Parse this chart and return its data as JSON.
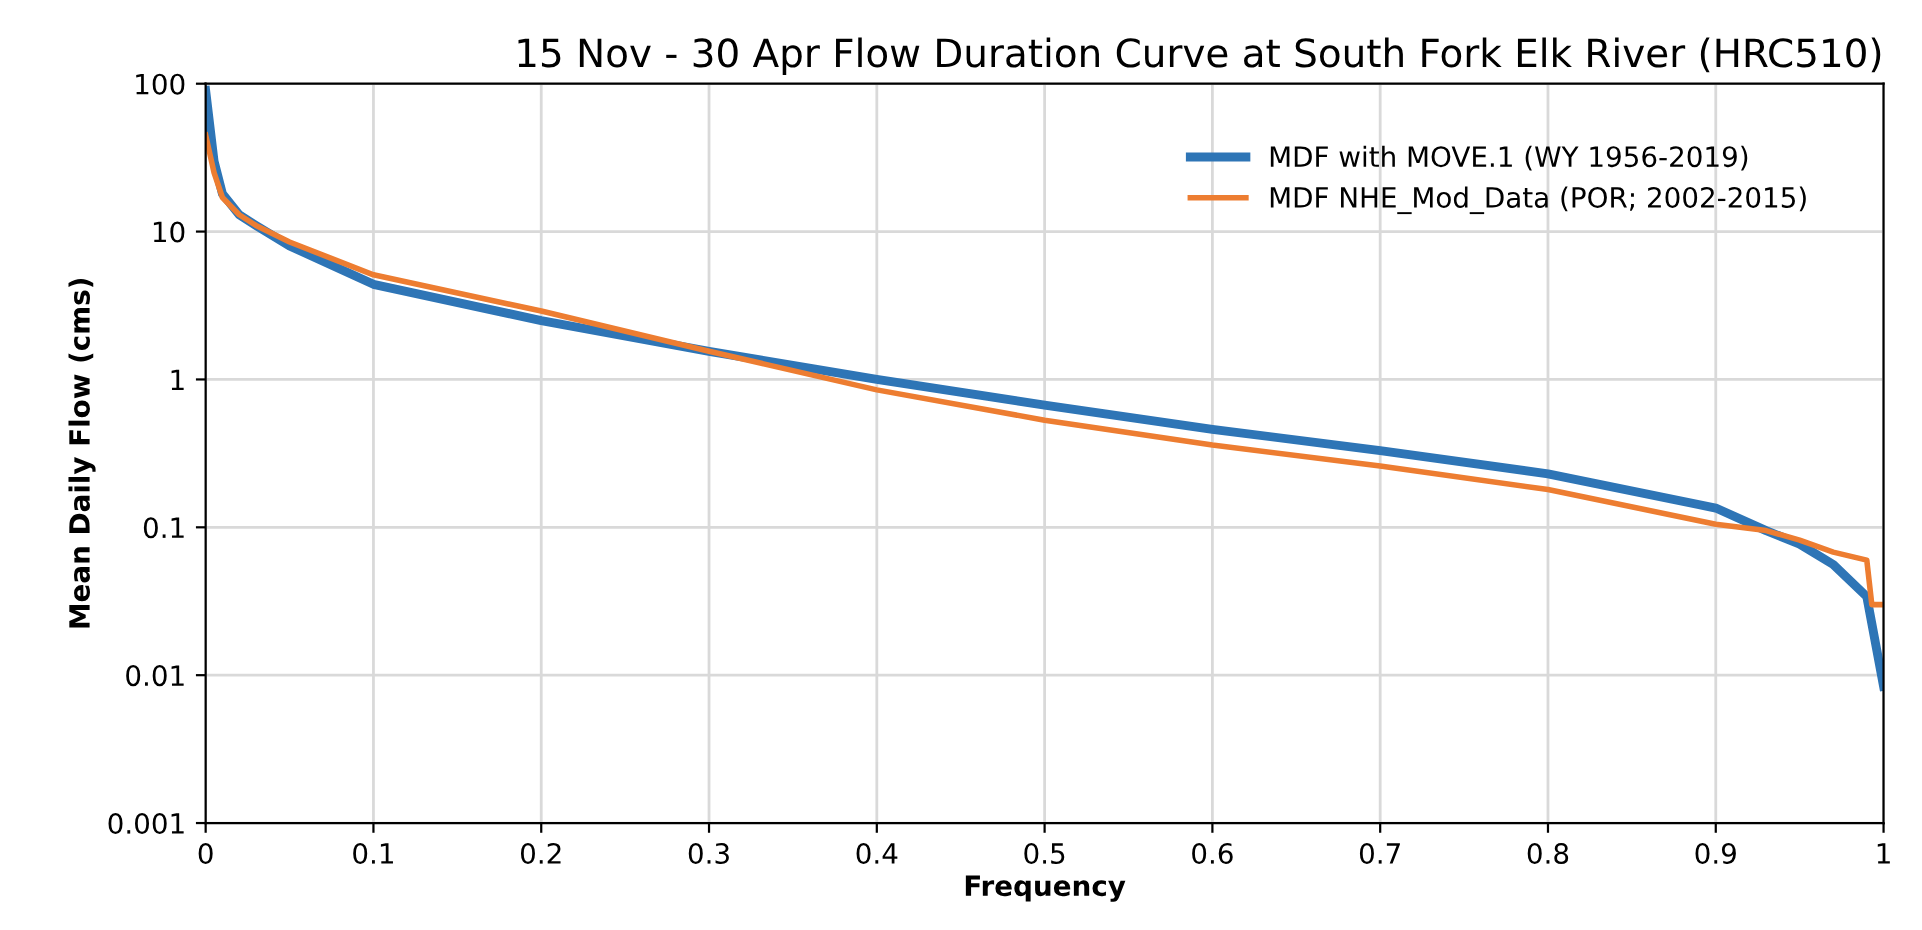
{
  "chart_data": {
    "type": "line",
    "title": "15 Nov - 30 Apr Flow Duration Curve at South Fork Elk River (HRC510)",
    "xlabel": "Frequency",
    "ylabel": "Mean Daily Flow (cms)",
    "log": "y",
    "grid": true,
    "legend": "top right",
    "line_style": "solid",
    "xlim": [
      0,
      1
    ],
    "xticks": [
      0,
      0.1,
      0.2,
      0.3,
      0.4,
      0.5,
      0.6,
      0.7,
      0.8,
      0.9,
      1
    ],
    "ylim": [
      0.001,
      100
    ],
    "yticks": [
      0.001,
      0.01,
      0.1,
      1,
      10,
      100
    ],
    "series": [
      {
        "name": "MDF with MOVE.1 (WY 1956-2019)",
        "color": "#2e75b6",
        "x": [
          0,
          0.005,
          0.01,
          0.02,
          0.03,
          0.05,
          0.1,
          0.2,
          0.3,
          0.4,
          0.5,
          0.6,
          0.7,
          0.8,
          0.9,
          0.93,
          0.95,
          0.97,
          0.99,
          1
        ],
        "values": [
          90,
          30,
          18,
          13,
          11,
          8,
          4.4,
          2.5,
          1.55,
          1.0,
          0.67,
          0.46,
          0.33,
          0.23,
          0.135,
          0.095,
          0.077,
          0.056,
          0.034,
          0.0084
        ]
      },
      {
        "name": "MDF NHE_Mod_Data (POR; 2002-2015)",
        "color": "#ed7d31",
        "x": [
          0,
          0.005,
          0.01,
          0.02,
          0.03,
          0.05,
          0.1,
          0.2,
          0.3,
          0.4,
          0.5,
          0.6,
          0.7,
          0.8,
          0.9,
          0.93,
          0.95,
          0.97,
          0.99,
          0.993,
          1
        ],
        "values": [
          45,
          25,
          17,
          13,
          11,
          8.5,
          5.1,
          2.9,
          1.55,
          0.85,
          0.53,
          0.36,
          0.26,
          0.18,
          0.105,
          0.095,
          0.082,
          0.068,
          0.06,
          0.03,
          0.03
        ]
      }
    ]
  }
}
